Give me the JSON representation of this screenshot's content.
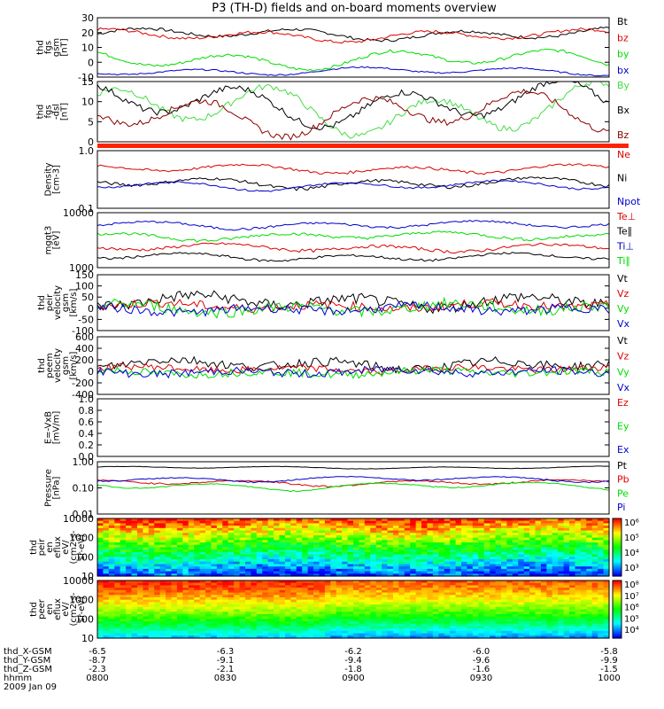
{
  "title": "P3 (TH-D) fields and on-board moments overview",
  "colors": {
    "black": "#000000",
    "red": "#dd0000",
    "green": "#00dd00",
    "blue": "#0000cc",
    "darkred": "#8b0000",
    "lightgreen": "#44dd44"
  },
  "chart_data": [
    {
      "type": "line",
      "id": "fgs",
      "ylabel": [
        "thd",
        "fgs",
        "gsm",
        "[nT]"
      ],
      "ylim": [
        -10,
        30
      ],
      "yticks": [
        "30",
        "20",
        "10",
        "0",
        "-10"
      ],
      "series": [
        {
          "name": "Bt",
          "color": "#000000",
          "base": 19,
          "amp": 3,
          "noise": 1
        },
        {
          "name": "bz",
          "color": "#dd0000",
          "base": 18,
          "amp": 3,
          "noise": 1
        },
        {
          "name": "by",
          "color": "#00dd00",
          "base": 2,
          "amp": 5,
          "noise": 1
        },
        {
          "name": "bx",
          "color": "#0000cc",
          "base": -6,
          "amp": 2,
          "noise": 0.5
        }
      ]
    },
    {
      "type": "line",
      "id": "fgs_dsl",
      "ylabel": [
        "thd",
        "fgs",
        "-dsl",
        "[nT]"
      ],
      "ylim": [
        -2,
        17
      ],
      "yticks": [
        "15",
        "10",
        "5",
        "0"
      ],
      "series": [
        {
          "name": "By",
          "color": "#44dd44",
          "base": 8,
          "amp": 6,
          "noise": 1
        },
        {
          "name": "Bx",
          "color": "#000000",
          "base": 10,
          "amp": 5,
          "noise": 1
        },
        {
          "name": "Bz",
          "color": "#8b0000",
          "base": 7,
          "amp": 5,
          "noise": 1
        }
      ]
    },
    {
      "type": "line",
      "id": "density",
      "ylabel": [
        "Density",
        "[cm-3]"
      ],
      "ylim": [
        0.1,
        1.2
      ],
      "log": true,
      "yticks": [
        "1.0",
        "0.1"
      ],
      "series": [
        {
          "name": "Ne",
          "color": "#dd0000",
          "base": 0.55,
          "amp": 0.08,
          "noise": 0.03
        },
        {
          "name": "Ni",
          "color": "#000000",
          "base": 0.3,
          "amp": 0.05,
          "noise": 0.02
        },
        {
          "name": "Npot",
          "color": "#0000cc",
          "base": 0.27,
          "amp": 0.04,
          "noise": 0.01
        }
      ]
    },
    {
      "type": "line",
      "id": "temp",
      "ylabel": [
        "mgqt3",
        "[eV]"
      ],
      "ylim": [
        1000,
        11000
      ],
      "log": true,
      "yticks": [
        "10000",
        "1000"
      ],
      "series": [
        {
          "name": "Te⊥",
          "color": "#dd0000",
          "base": 2400,
          "amp": 300,
          "noise": 150
        },
        {
          "name": "Te∥",
          "color": "#000000",
          "base": 1600,
          "amp": 200,
          "noise": 80
        },
        {
          "name": "Ti⊥",
          "color": "#0000cc",
          "base": 6500,
          "amp": 800,
          "noise": 300
        },
        {
          "name": "Ti∥",
          "color": "#00dd00",
          "base": 4000,
          "amp": 500,
          "noise": 250
        }
      ]
    },
    {
      "type": "line",
      "id": "peir_v",
      "ylabel": [
        "thd",
        "peir",
        "velocity",
        "gsm",
        "[km/s]"
      ],
      "ylim": [
        -100,
        150
      ],
      "yticks": [
        "150",
        "100",
        "50",
        "0",
        "-50",
        "-100"
      ],
      "series": [
        {
          "name": "Vt",
          "color": "#000000",
          "base": 30,
          "amp": 20,
          "noise": 25
        },
        {
          "name": "Vz",
          "color": "#dd0000",
          "base": 10,
          "amp": 10,
          "noise": 20
        },
        {
          "name": "Vy",
          "color": "#00dd00",
          "base": 0,
          "amp": 15,
          "noise": 25
        },
        {
          "name": "Vx",
          "color": "#0000cc",
          "base": -5,
          "amp": 10,
          "noise": 20
        }
      ]
    },
    {
      "type": "line",
      "id": "peem_v",
      "ylabel": [
        "thd",
        "peem",
        "velocity",
        "gsm",
        "[km/s]"
      ],
      "ylim": [
        -400,
        600
      ],
      "yticks": [
        "600",
        "400",
        "200",
        "0",
        "-200",
        "-400"
      ],
      "series": [
        {
          "name": "Vt",
          "color": "#000000",
          "base": 120,
          "amp": 60,
          "noise": 80
        },
        {
          "name": "Vz",
          "color": "#dd0000",
          "base": 40,
          "amp": 30,
          "noise": 60
        },
        {
          "name": "Vy",
          "color": "#00dd00",
          "base": -20,
          "amp": 30,
          "noise": 70
        },
        {
          "name": "Vx",
          "color": "#0000cc",
          "base": -10,
          "amp": 30,
          "noise": 70
        }
      ]
    },
    {
      "type": "line",
      "id": "efield",
      "ylabel": [
        "E=-VxB",
        "[mV/m]"
      ],
      "ylim": [
        0,
        1
      ],
      "yticks": [
        "1.0",
        "0.8",
        "0.6",
        "0.4",
        "0.2",
        "0.0"
      ],
      "series": [
        {
          "name": "Ez",
          "color": "#dd0000"
        },
        {
          "name": "Ey",
          "color": "#00dd00"
        },
        {
          "name": "Ex",
          "color": "#0000cc"
        }
      ]
    },
    {
      "type": "line",
      "id": "pressure",
      "ylabel": [
        "Pressure",
        "[nPa]"
      ],
      "ylim": [
        0.01,
        1.0
      ],
      "log": true,
      "yticks": [
        "1.00",
        "0.10",
        "0.01"
      ],
      "series": [
        {
          "name": "Pt",
          "color": "#000000",
          "base": 0.6,
          "amp": 0.05,
          "noise": 0.01
        },
        {
          "name": "Pb",
          "color": "#dd0000",
          "base": 0.16,
          "amp": 0.03,
          "noise": 0.01
        },
        {
          "name": "Pe",
          "color": "#00dd00",
          "base": 0.12,
          "amp": 0.03,
          "noise": 0.005
        },
        {
          "name": "Pi",
          "color": "#0000cc",
          "base": 0.22,
          "amp": 0.04,
          "noise": 0.01
        }
      ]
    },
    {
      "type": "heatmap",
      "id": "peir_spec",
      "ylabel": [
        "thd",
        "peir",
        "en",
        "eflux",
        "eV/",
        "(cm2-s-",
        "sr-eV)"
      ],
      "yticks": [
        "10000",
        "1000",
        "100",
        "10"
      ],
      "colorbar": [
        "10⁶",
        "10⁵",
        "10⁴",
        "10³"
      ],
      "profile": "ion"
    },
    {
      "type": "heatmap",
      "id": "peer_spec",
      "ylabel": [
        "thd",
        "peer",
        "en",
        "eflux",
        "eV/",
        "(cm2-s-",
        "sr-eV)"
      ],
      "yticks": [
        "10000",
        "1000",
        "100",
        "10"
      ],
      "colorbar": [
        "10⁸",
        "10⁷",
        "10⁶",
        "10⁵",
        "10⁴"
      ],
      "profile": "electron"
    }
  ],
  "xaxis": {
    "tick_label_rows": [
      {
        "name": "thd_X-GSM",
        "values": [
          "-6.5",
          "-6.3",
          "-6.2",
          "-6.0",
          "-5.8"
        ]
      },
      {
        "name": "thd_Y-GSM",
        "values": [
          "-8.7",
          "-9.1",
          "-9.4",
          "-9.6",
          "-9.9"
        ]
      },
      {
        "name": "thd_Z-GSM",
        "values": [
          "-2.3",
          "-2.1",
          "-1.8",
          "-1.6",
          "-1.5"
        ]
      },
      {
        "name": "hhmm",
        "values": [
          "0800",
          "0830",
          "0900",
          "0930",
          "1000"
        ]
      }
    ],
    "date": "2009 Jan 09"
  }
}
